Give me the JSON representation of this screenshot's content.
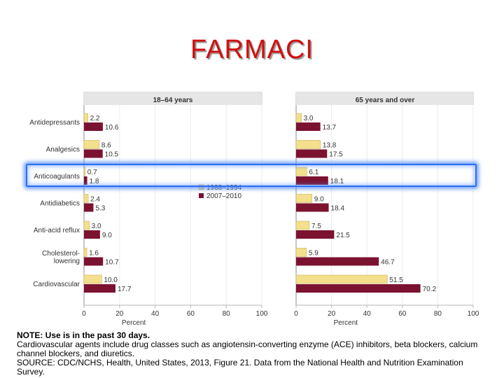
{
  "slide": {
    "title": "FARMACI"
  },
  "chart_data": [
    {
      "type": "bar",
      "orientation": "horizontal",
      "title": "18–64 years",
      "categories": [
        "Antidepressants",
        "Analgesics",
        "Anticoagulants",
        "Antidiabetics",
        "Anti-acid reflux",
        "Cholesterol-lowering",
        "Cardiovascular"
      ],
      "category_lines": [
        [
          "Antidepressants"
        ],
        [
          "Analgesics"
        ],
        [
          "Anticoagulants"
        ],
        [
          "Antidiabetics"
        ],
        [
          "Anti-acid reflux"
        ],
        [
          "Cholesterol-",
          "lowering"
        ],
        [
          "Cardiovascular"
        ]
      ],
      "series": [
        {
          "name": "1988–1994",
          "color": "#f3df8c",
          "values": [
            2.2,
            8.6,
            0.7,
            2.4,
            3.0,
            1.6,
            10.0
          ],
          "labels": [
            "2.2",
            "8.6",
            "0.7",
            "2.4",
            "3.0",
            "1.6",
            "10.0"
          ]
        },
        {
          "name": "2007–2010",
          "color": "#7b1230",
          "values": [
            10.6,
            10.5,
            1.8,
            5.3,
            9.0,
            10.7,
            17.7
          ],
          "labels": [
            "10.6",
            "10.5",
            "1.8",
            "5.3",
            "9.0",
            "10.7",
            "17.7"
          ]
        }
      ],
      "xlabel": "Percent",
      "xlim": [
        0,
        100
      ],
      "xticks": [
        "0",
        "20",
        "40",
        "60",
        "80",
        "100"
      ],
      "legend": "inside-right"
    },
    {
      "type": "bar",
      "orientation": "horizontal",
      "title": "65 years and over",
      "categories": [
        "Antidepressants",
        "Analgesics",
        "Anticoagulants",
        "Antidiabetics",
        "Anti-acid reflux",
        "Cholesterol-lowering",
        "Cardiovascular"
      ],
      "series": [
        {
          "name": "1988–1994",
          "color": "#f3df8c",
          "values": [
            3.0,
            13.8,
            6.1,
            9.0,
            7.5,
            5.9,
            51.5
          ],
          "labels": [
            "3.0",
            "13.8",
            "6.1",
            "9.0",
            "7.5",
            "5.9",
            "51.5"
          ]
        },
        {
          "name": "2007–2010",
          "color": "#7b1230",
          "values": [
            13.7,
            17.5,
            18.1,
            18.4,
            21.5,
            46.7,
            70.2
          ],
          "labels": [
            "13.7",
            "17.5",
            "18.1",
            "18.4",
            "21.5",
            "46.7",
            "70.2"
          ]
        }
      ],
      "xlabel": "Percent",
      "xlim": [
        0,
        100
      ],
      "xticks": [
        "0",
        "20",
        "40",
        "60",
        "80",
        "100"
      ]
    }
  ],
  "note": {
    "line1": "NOTE: Use is in the past 30 days.",
    "line2": "Cardiovascular agents include drug classes such as angiotensin-converting enzyme (ACE) inhibitors, beta blockers, calcium channel blockers, and diuretics.",
    "line3": "SOURCE: CDC/NCHS, Health, United States, 2013, Figure 21. Data from the National Health and Nutrition Examination Survey."
  },
  "colors": {
    "title": "#d10f0f",
    "highlight": "#2d6ff2",
    "panel_header": "#e6e6e6",
    "axis": "#b5b5b5"
  }
}
